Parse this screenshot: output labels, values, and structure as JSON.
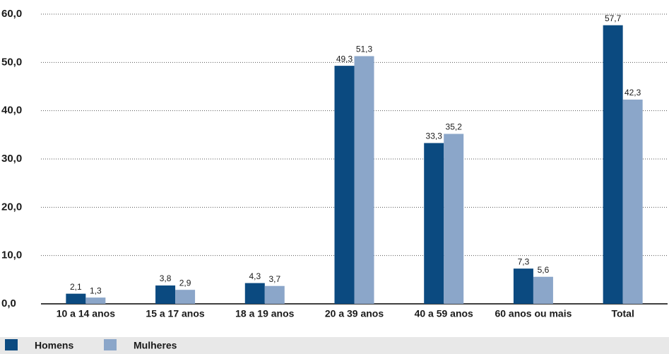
{
  "chart_data": {
    "type": "bar",
    "categories": [
      "10 a 14 anos",
      "15 a 17 anos",
      "18 a 19 anos",
      "20 a 39 anos",
      "40 a 59 anos",
      "60 anos ou mais",
      "Total"
    ],
    "series": [
      {
        "name": "Homens",
        "color": "#0b4a80",
        "values": [
          2.1,
          3.8,
          4.3,
          49.3,
          33.3,
          7.3,
          57.7
        ],
        "value_labels": [
          "2,1",
          "3,8",
          "4,3",
          "49,3",
          "33,3",
          "7,3",
          "57,7"
        ]
      },
      {
        "name": "Mulheres",
        "color": "#8ba6c9",
        "values": [
          1.3,
          2.9,
          3.7,
          51.3,
          35.2,
          5.6,
          42.3
        ],
        "value_labels": [
          "1,3",
          "2,9",
          "3,7",
          "51,3",
          "35,2",
          "5,6",
          "42,3"
        ]
      }
    ],
    "ylim": [
      0,
      60
    ],
    "yticks": [
      {
        "value": 0,
        "label": "0,0"
      },
      {
        "value": 10,
        "label": "10,0"
      },
      {
        "value": 20,
        "label": "20,0"
      },
      {
        "value": 30,
        "label": "30,0"
      },
      {
        "value": 40,
        "label": "40,0"
      },
      {
        "value": 50,
        "label": "50,0"
      },
      {
        "value": 60,
        "label": "60,0"
      }
    ],
    "grid": true,
    "legend": "bottom"
  }
}
